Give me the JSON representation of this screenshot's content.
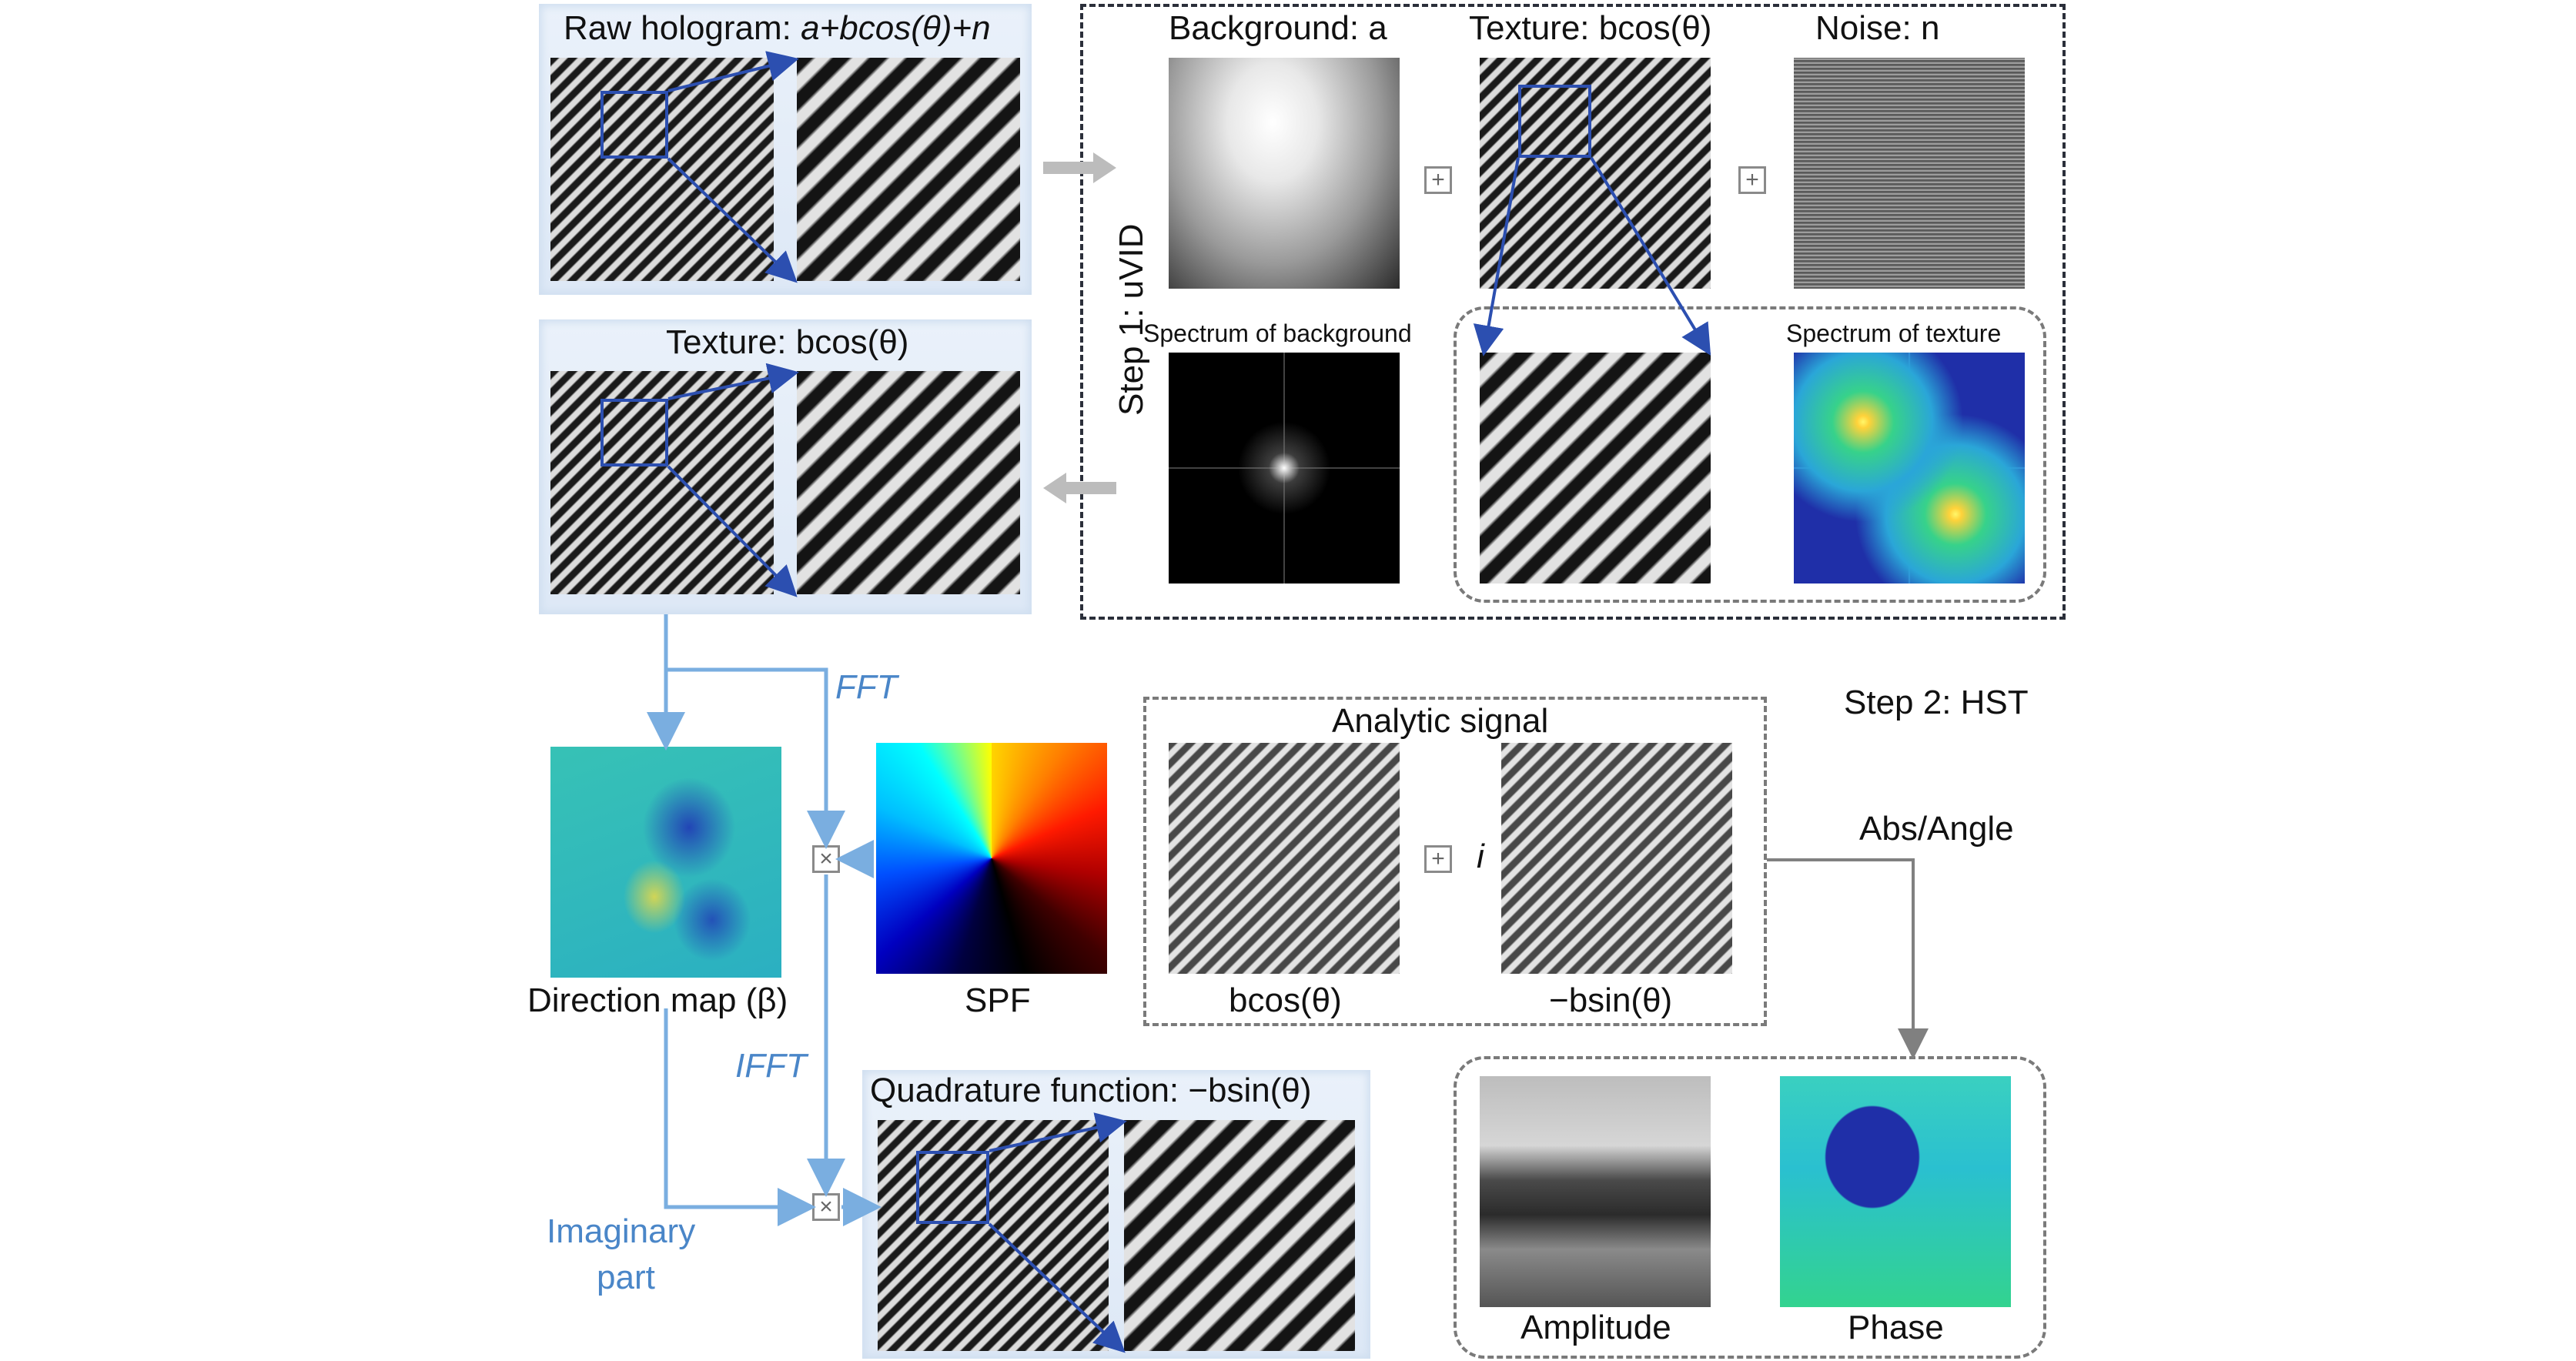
{
  "raw_hologram": {
    "title_prefix": "Raw hologram: ",
    "title_formula": "a+bcos(θ)+n"
  },
  "uvid": {
    "step_label": "Step 1: uVID",
    "background_title": "Background: a",
    "texture_title": "Texture: bcos(θ)",
    "noise_title": "Noise: n",
    "spectrum_background": "Spectrum of background",
    "spectrum_texture": "Spectrum of texture"
  },
  "texture_panel": {
    "title": "Texture: bcos(θ)"
  },
  "hst": {
    "step_label": "Step 2: HST",
    "fft": "FFT",
    "ifft": "IFFT",
    "direction_map": "Direction map (β)",
    "spf": "SPF",
    "analytic_signal": "Analytic signal",
    "real_label": "bcos(θ)",
    "imag_label": "−bsin(θ)",
    "i_symbol": "i",
    "abs_angle": "Abs/Angle",
    "quadrature_title": "Quadrature function: −bsin(θ)",
    "imaginary_part_line1": "Imaginary",
    "imaginary_part_line2": "part",
    "amplitude": "Amplitude",
    "phase": "Phase"
  },
  "operators": {
    "plus": "+",
    "times": "×"
  },
  "colors": {
    "accent_blue": "#4a86c8",
    "zoom_blue": "#2c4fb0",
    "dash_dark": "#2b2f3a",
    "dash_gray": "#7a7a7a"
  }
}
